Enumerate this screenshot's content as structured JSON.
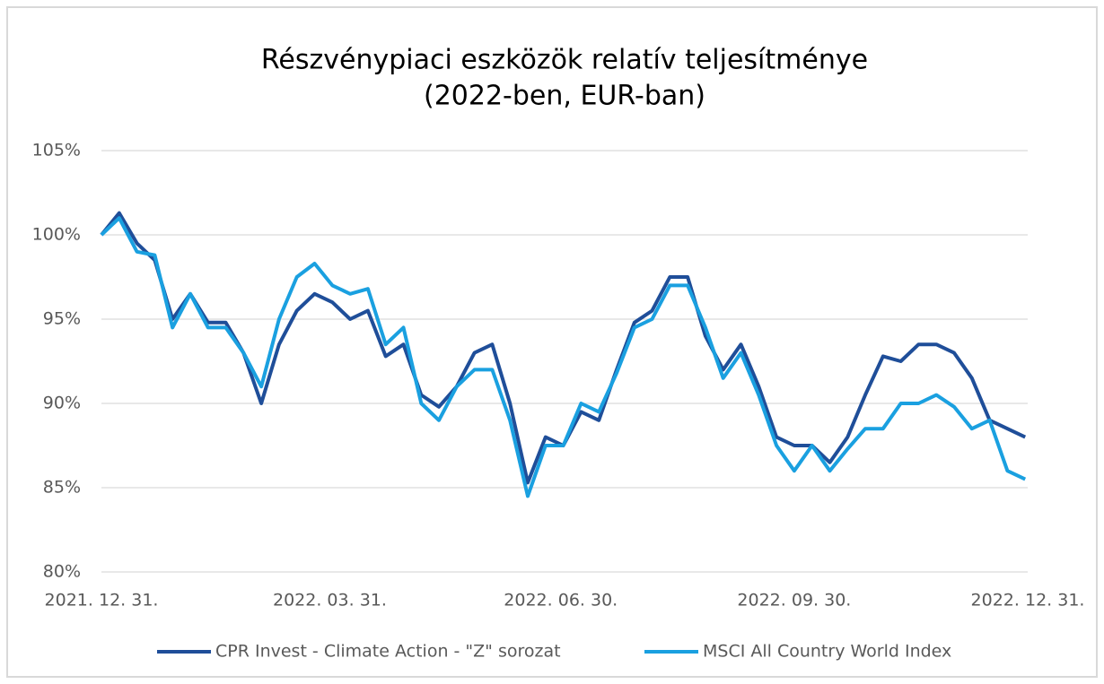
{
  "chart_data": {
    "type": "line",
    "title": "Részvénypiaci eszközök relatív teljesítménye",
    "subtitle": "(2022-ben, EUR-ban)",
    "x": [
      "2021-12-31",
      "2022-01-07",
      "2022-01-14",
      "2022-01-21",
      "2022-01-28",
      "2022-02-04",
      "2022-02-11",
      "2022-02-18",
      "2022-02-25",
      "2022-03-04",
      "2022-03-11",
      "2022-03-18",
      "2022-03-25",
      "2022-04-01",
      "2022-04-08",
      "2022-04-15",
      "2022-04-22",
      "2022-04-29",
      "2022-05-06",
      "2022-05-13",
      "2022-05-20",
      "2022-05-27",
      "2022-06-03",
      "2022-06-10",
      "2022-06-17",
      "2022-06-24",
      "2022-07-01",
      "2022-07-08",
      "2022-07-15",
      "2022-07-22",
      "2022-07-29",
      "2022-08-05",
      "2022-08-12",
      "2022-08-19",
      "2022-08-26",
      "2022-09-02",
      "2022-09-09",
      "2022-09-16",
      "2022-09-23",
      "2022-09-30",
      "2022-10-07",
      "2022-10-14",
      "2022-10-21",
      "2022-10-28",
      "2022-11-04",
      "2022-11-11",
      "2022-11-18",
      "2022-11-25",
      "2022-12-02",
      "2022-12-09",
      "2022-12-16",
      "2022-12-23",
      "2022-12-30"
    ],
    "series": [
      {
        "name": "CPR Invest - Climate Action - \"Z\" sorozat",
        "color": "#1f4e99",
        "values": [
          100,
          101.3,
          99.5,
          98.5,
          95,
          96.5,
          94.8,
          94.8,
          93,
          90,
          93.5,
          95.5,
          96.5,
          96,
          95,
          95.5,
          92.8,
          93.5,
          90.5,
          89.8,
          91,
          93,
          93.5,
          90,
          85.3,
          88,
          87.5,
          89.5,
          89,
          92,
          94.8,
          95.5,
          97.5,
          97.5,
          94,
          92,
          93.5,
          91,
          88,
          87.5,
          87.5,
          86.5,
          88,
          90.5,
          92.8,
          92.5,
          93.5,
          93.5,
          93,
          91.5,
          89,
          88.5,
          88
        ]
      },
      {
        "name": "MSCI All Country World Index",
        "color": "#1aa0e0",
        "values": [
          100,
          101,
          99,
          98.8,
          94.5,
          96.5,
          94.5,
          94.5,
          93,
          91,
          95,
          97.5,
          98.3,
          97,
          96.5,
          96.8,
          93.5,
          94.5,
          90,
          89,
          91,
          92,
          92,
          89,
          84.5,
          87.5,
          87.5,
          90,
          89.5,
          91.8,
          94.5,
          95,
          97,
          97,
          94.5,
          91.5,
          93,
          90.5,
          87.5,
          86,
          87.5,
          86,
          87.3,
          88.5,
          88.5,
          90,
          90,
          90.5,
          89.8,
          88.5,
          89,
          86,
          85.5
        ]
      }
    ],
    "xlim": [
      "2021-12-31",
      "2022-12-31"
    ],
    "xticks": [
      {
        "value": "2021-12-31",
        "label": "2021. 12. 31."
      },
      {
        "value": "2022-03-31",
        "label": "2022. 03. 31."
      },
      {
        "value": "2022-06-30",
        "label": "2022. 06. 30."
      },
      {
        "value": "2022-09-30",
        "label": "2022. 09. 30."
      },
      {
        "value": "2022-12-31",
        "label": "2022. 12. 31."
      }
    ],
    "ylim": [
      80,
      105
    ],
    "yticks": [
      {
        "value": 80,
        "label": "80%"
      },
      {
        "value": 85,
        "label": "85%"
      },
      {
        "value": 90,
        "label": "90%"
      },
      {
        "value": 95,
        "label": "95%"
      },
      {
        "value": 100,
        "label": "100%"
      },
      {
        "value": 105,
        "label": "105%"
      }
    ],
    "grid": true,
    "legend": "bottom"
  }
}
